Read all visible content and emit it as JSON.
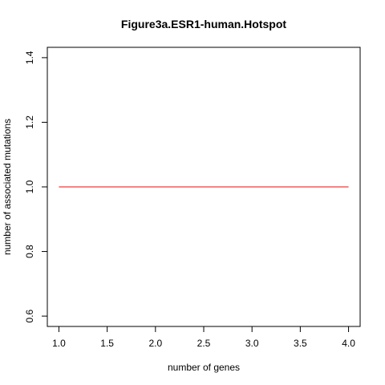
{
  "chart_data": {
    "type": "line",
    "title": "Figure3a.ESR1-human.Hotspot",
    "xlabel": "number of genes",
    "ylabel": "number of associated mutations",
    "xlim": [
      1.0,
      4.0
    ],
    "ylim": [
      0.6,
      1.4
    ],
    "x_ticks": [
      "1.0",
      "1.5",
      "2.0",
      "2.5",
      "3.0",
      "3.5",
      "4.0"
    ],
    "y_ticks": [
      "0.6",
      "0.8",
      "1.0",
      "1.2",
      "1.4"
    ],
    "series": [
      {
        "x": [
          1,
          2,
          3,
          4
        ],
        "y": [
          1,
          1,
          1,
          1
        ],
        "color": "#ff0000"
      }
    ],
    "grid": false,
    "legend": "none"
  }
}
